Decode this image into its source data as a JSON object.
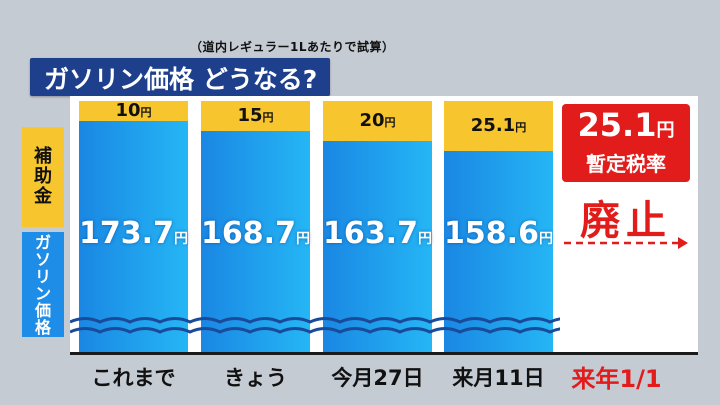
{
  "subtitle": "（道内レギュラー1Lあたりで試算）",
  "title": "ガソリン価格 どうなる?",
  "legend": {
    "subsidy": "補\n助\n金",
    "gasoline": "ガ\nソ\nリ\nン\n価\n格"
  },
  "unit": "円",
  "chart_data": {
    "type": "bar",
    "stacked": true,
    "categories": [
      "これまで",
      "きょう",
      "今月27日",
      "来月11日",
      "来年1/1"
    ],
    "series": [
      {
        "name": "ガソリン価格",
        "values": [
          173.7,
          168.7,
          163.7,
          158.6,
          null
        ],
        "color": "#1e8de8"
      },
      {
        "name": "補助金",
        "values": [
          10,
          15,
          20,
          25.1,
          null
        ],
        "color": "#f7c62f"
      }
    ],
    "value_labels": {
      "gasoline": [
        "173.7",
        "168.7",
        "163.7",
        "158.6"
      ],
      "subsidy": [
        "10",
        "15",
        "20",
        "25.1"
      ]
    },
    "highlight_category_color": "#e21b1b"
  },
  "annotation": {
    "amount": "25.1",
    "unit": "円",
    "label": "暫定税率",
    "action": "廃止"
  }
}
